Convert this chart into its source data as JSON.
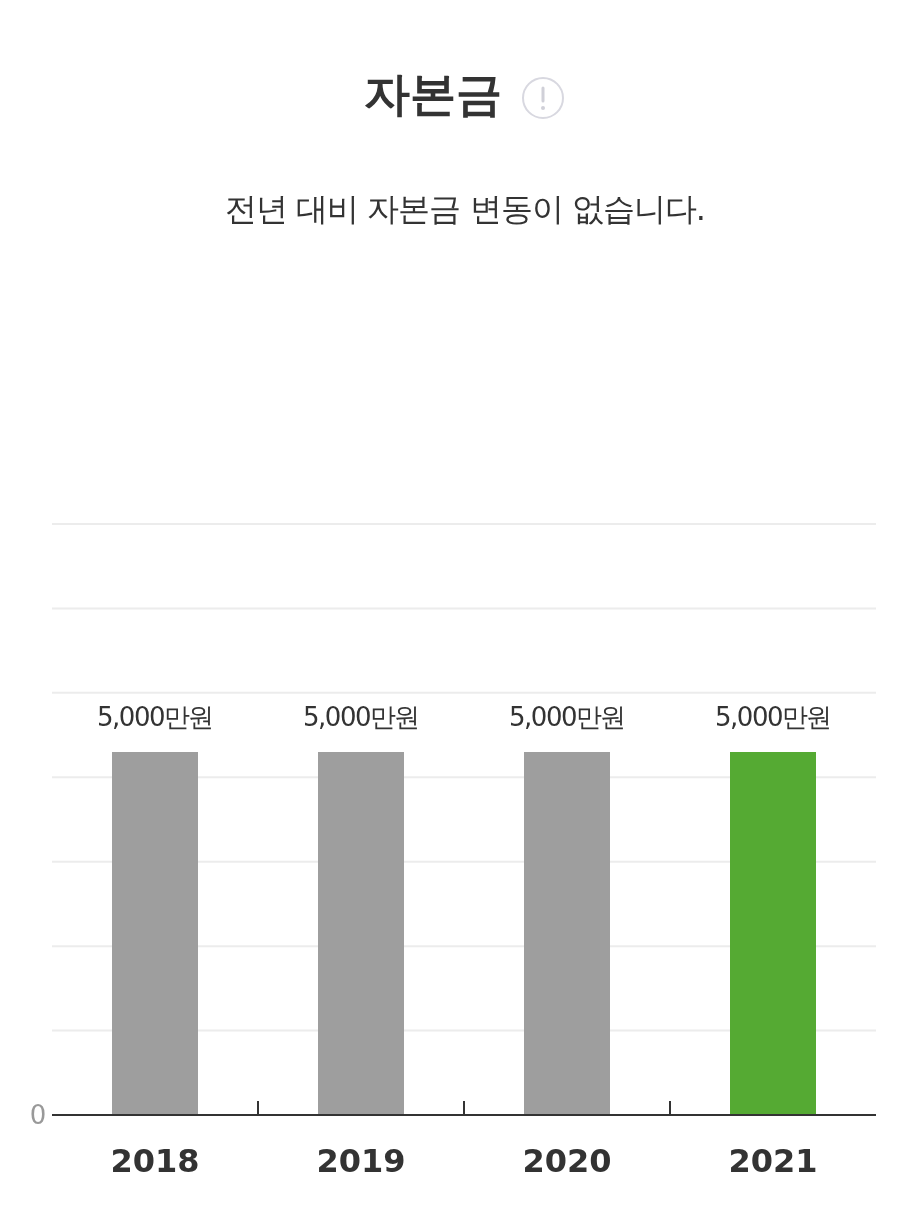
{
  "chart_data": {
    "type": "bar",
    "title": "자본금",
    "subtitle": "전년 대비 자본금 변동이 없습니다.",
    "categories": [
      "2018",
      "2019",
      "2020",
      "2021"
    ],
    "values": [
      5000,
      5000,
      5000,
      5000
    ],
    "value_labels": [
      "5,000만원",
      "5,000만원",
      "5,000만원",
      "5,000만원"
    ],
    "colors": [
      "#9e9e9e",
      "#9e9e9e",
      "#9e9e9e",
      "#55aa33"
    ],
    "annotations": [
      "0"
    ],
    "grid": "y"
  }
}
